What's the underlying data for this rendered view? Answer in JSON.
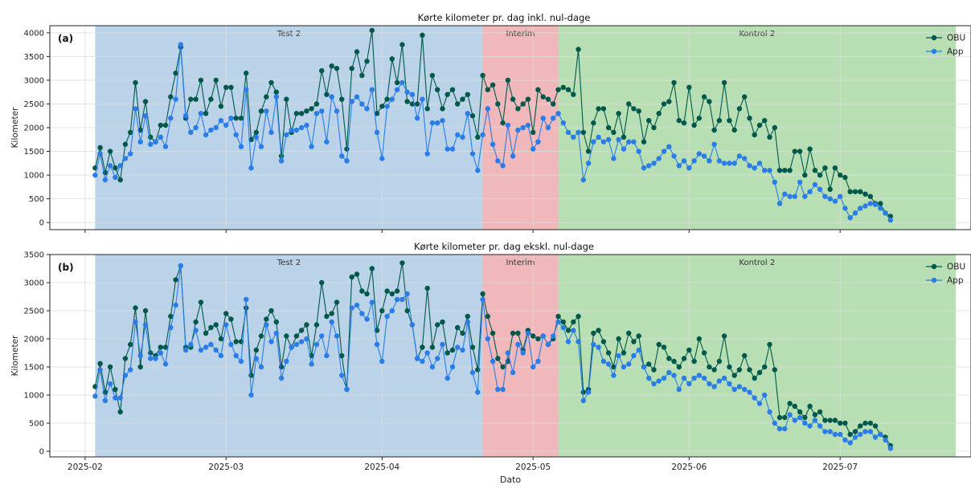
{
  "figure": {
    "xlabel": "Dato",
    "colors": {
      "obu": "#00584a",
      "app": "#2a7de8",
      "test": "#bad3e8",
      "interim": "#f0b8bb",
      "kontrol": "#b8dfb4",
      "grid": "#dddddd"
    }
  },
  "chart_data": [
    {
      "type": "line",
      "title": "Kørte kilometer pr. dag inkl. nul-dage",
      "panel_label": "(a)",
      "ylabel": "Kilometer",
      "xlim": [
        "2025-01-25",
        "2025-07-27"
      ],
      "ylim": [
        -150,
        4150
      ],
      "yticks": [
        0,
        500,
        1000,
        1500,
        2000,
        2500,
        3000,
        3500,
        4000
      ],
      "xticks": [
        {
          "date": "2025-02-01",
          "label": "2025-02"
        },
        {
          "date": "2025-03-01",
          "label": "2025-03"
        },
        {
          "date": "2025-04-01",
          "label": "2025-04"
        },
        {
          "date": "2025-05-01",
          "label": "2025-05"
        },
        {
          "date": "2025-06-01",
          "label": "2025-06"
        },
        {
          "date": "2025-07-01",
          "label": "2025-07"
        }
      ],
      "grid": true,
      "legend_position": "top-right",
      "x_start": "2025-02-03",
      "periods": [
        {
          "label": "Test 2",
          "start": "2025-02-03",
          "end": "2025-04-21",
          "color": "test"
        },
        {
          "label": "Interim",
          "start": "2025-04-21",
          "end": "2025-05-06",
          "color": "interim"
        },
        {
          "label": "Kontrol 2",
          "start": "2025-05-06",
          "end": "2025-07-24",
          "color": "kontrol"
        }
      ],
      "series": [
        {
          "name": "OBU",
          "color": "obu",
          "values": [
            1150,
            1580,
            1050,
            1500,
            1150,
            900,
            1650,
            1900,
            2950,
            1950,
            2550,
            1800,
            1700,
            2050,
            2050,
            2650,
            3150,
            3700,
            2200,
            2600,
            2600,
            3000,
            2300,
            2600,
            3000,
            2450,
            2850,
            2850,
            2200,
            2200,
            3150,
            1750,
            1900,
            2350,
            2650,
            2950,
            2750,
            1400,
            2600,
            1900,
            2300,
            2300,
            2350,
            2400,
            2500,
            3200,
            2700,
            3300,
            3250,
            2600,
            1550,
            3250,
            3600,
            3100,
            3400,
            4050,
            2300,
            2450,
            2600,
            3450,
            2950,
            3750,
            2550,
            2500,
            2500,
            3950,
            2400,
            3100,
            2800,
            2400,
            2700,
            2800,
            2500,
            2600,
            2700,
            2250,
            1800,
            3100,
            2800,
            2900,
            2500,
            2100,
            3000,
            2600,
            2400,
            2500,
            2600,
            1900,
            2800,
            2650,
            2600,
            2500,
            2800,
            2850,
            2800,
            2700,
            3650,
            1900,
            1500,
            2100,
            2400,
            2400,
            2000,
            1900,
            2300,
            1800,
            2500,
            2400,
            2350,
            1700,
            2150,
            2000,
            2300,
            2500,
            2550,
            2950,
            2150,
            2100,
            2850,
            2050,
            2200,
            2650,
            2550,
            1950,
            2150,
            2950,
            2150,
            1950,
            2400,
            2650,
            2200,
            1850,
            2050,
            2150,
            1800,
            2000,
            1100,
            1100,
            1100,
            1500,
            1500,
            1000,
            1550,
            1100,
            1000,
            1150,
            700,
            1150,
            1000,
            950,
            650,
            650,
            650,
            600,
            550,
            400,
            400,
            200,
            130
          ]
        },
        {
          "name": "App",
          "color": "app",
          "values": [
            1000,
            1450,
            900,
            1200,
            950,
            1200,
            1350,
            1450,
            2400,
            1700,
            2250,
            1650,
            1700,
            1800,
            1600,
            2200,
            2600,
            3750,
            2250,
            1900,
            2000,
            2300,
            1850,
            1950,
            2000,
            2150,
            2050,
            2200,
            1850,
            1600,
            2800,
            1150,
            1800,
            1600,
            2350,
            1900,
            2650,
            1300,
            1850,
            1950,
            1950,
            2000,
            2050,
            1600,
            2300,
            2350,
            1700,
            2650,
            2350,
            1400,
            1300,
            2550,
            2650,
            2500,
            2400,
            2800,
            1900,
            1350,
            2450,
            2600,
            2800,
            2950,
            2750,
            2700,
            2200,
            2600,
            1450,
            2100,
            2100,
            2150,
            1550,
            1550,
            1850,
            1800,
            2300,
            1450,
            1100,
            1850,
            2400,
            1650,
            1300,
            1200,
            2050,
            1400,
            1950,
            2000,
            2050,
            1550,
            1700,
            2200,
            2000,
            2200,
            2300,
            2100,
            1900,
            1800,
            1900,
            900,
            1250,
            1700,
            1800,
            1700,
            1750,
            1350,
            1750,
            1550,
            1700,
            1700,
            1500,
            1150,
            1200,
            1250,
            1350,
            1500,
            1600,
            1400,
            1200,
            1300,
            1150,
            1300,
            1450,
            1400,
            1300,
            1650,
            1300,
            1250,
            1250,
            1250,
            1400,
            1350,
            1200,
            1150,
            1250,
            1100,
            1100,
            850,
            400,
            600,
            550,
            550,
            850,
            550,
            650,
            800,
            700,
            550,
            500,
            450,
            550,
            300,
            100,
            200,
            300,
            350,
            400,
            380,
            300,
            200,
            50
          ]
        }
      ]
    },
    {
      "type": "line",
      "title": "Kørte kilometer pr. dag ekskl. nul-dage",
      "panel_label": "(b)",
      "ylabel": "Kilometer",
      "xlim": [
        "2025-01-25",
        "2025-07-27"
      ],
      "ylim": [
        -100,
        3500
      ],
      "yticks": [
        0,
        500,
        1000,
        1500,
        2000,
        2500,
        3000,
        3500
      ],
      "xticks": [
        {
          "date": "2025-02-01",
          "label": "2025-02"
        },
        {
          "date": "2025-03-01",
          "label": "2025-03"
        },
        {
          "date": "2025-04-01",
          "label": "2025-04"
        },
        {
          "date": "2025-05-01",
          "label": "2025-05"
        },
        {
          "date": "2025-06-01",
          "label": "2025-06"
        },
        {
          "date": "2025-07-01",
          "label": "2025-07"
        }
      ],
      "grid": true,
      "legend_position": "top-right",
      "x_start": "2025-02-03",
      "periods": [
        {
          "label": "Test 2",
          "start": "2025-02-03",
          "end": "2025-04-21",
          "color": "test"
        },
        {
          "label": "Interim",
          "start": "2025-04-21",
          "end": "2025-05-06",
          "color": "interim"
        },
        {
          "label": "Kontrol 2",
          "start": "2025-05-06",
          "end": "2025-07-24",
          "color": "kontrol"
        }
      ],
      "series": [
        {
          "name": "OBU",
          "color": "obu",
          "values": [
            1150,
            1560,
            1050,
            1500,
            1100,
            700,
            1650,
            1900,
            2550,
            1500,
            2500,
            1750,
            1700,
            1850,
            1850,
            2400,
            3050,
            3300,
            1850,
            1850,
            2300,
            2650,
            2100,
            2200,
            2250,
            2000,
            2450,
            2350,
            1950,
            1950,
            2550,
            1350,
            1800,
            2050,
            2350,
            2500,
            2300,
            1500,
            2050,
            1850,
            2050,
            2150,
            2250,
            1700,
            2250,
            3000,
            2400,
            2450,
            2650,
            1700,
            1100,
            3100,
            3150,
            2850,
            2800,
            3250,
            2150,
            2500,
            2850,
            2800,
            2850,
            3350,
            2500,
            2250,
            1650,
            1850,
            2900,
            1850,
            2250,
            2300,
            1750,
            1800,
            2200,
            2100,
            2400,
            1850,
            1450,
            2800,
            2400,
            2100,
            1650,
            1500,
            1600,
            2100,
            2100,
            1800,
            2150,
            2050,
            2000,
            2050,
            1900,
            2000,
            2400,
            2300,
            2150,
            2300,
            2400,
            1050,
            1100,
            2100,
            2150,
            1950,
            1750,
            1500,
            2000,
            1750,
            2100,
            1950,
            2050,
            1500,
            1550,
            1450,
            1900,
            1850,
            1650,
            1600,
            1500,
            1650,
            1800,
            1600,
            2000,
            1750,
            1500,
            1450,
            1600,
            2050,
            1500,
            1350,
            1450,
            1700,
            1450,
            1300,
            1400,
            1500,
            1900,
            1450,
            600,
            600,
            850,
            800,
            700,
            600,
            800,
            650,
            700,
            550,
            550,
            550,
            500,
            500,
            300,
            350,
            450,
            500,
            500,
            450,
            300,
            250,
            100
          ]
        },
        {
          "name": "App",
          "color": "app",
          "values": [
            980,
            1450,
            900,
            1200,
            950,
            950,
            1350,
            1450,
            2300,
            1700,
            2250,
            1650,
            1650,
            1750,
            1550,
            2200,
            2600,
            3300,
            1800,
            1900,
            2150,
            1800,
            1850,
            1900,
            1800,
            1700,
            2250,
            1900,
            1700,
            1600,
            2700,
            1000,
            1650,
            1500,
            2250,
            1950,
            2100,
            1300,
            1600,
            1850,
            1900,
            1950,
            2000,
            1550,
            1900,
            2050,
            1700,
            2300,
            2050,
            1350,
            1100,
            2550,
            2600,
            2450,
            2350,
            2650,
            1900,
            1600,
            2400,
            2500,
            2700,
            2700,
            2800,
            2250,
            1650,
            1600,
            1750,
            1500,
            1650,
            1900,
            1300,
            1500,
            1850,
            1800,
            2300,
            1400,
            1050,
            2700,
            2000,
            1600,
            1100,
            1100,
            1750,
            1400,
            1900,
            1750,
            2100,
            1500,
            1600,
            2050,
            1900,
            2050,
            2300,
            2200,
            1950,
            2150,
            1950,
            900,
            1050,
            1900,
            1850,
            1600,
            1550,
            1350,
            1700,
            1500,
            1550,
            1700,
            1800,
            1500,
            1300,
            1200,
            1250,
            1300,
            1400,
            1350,
            1100,
            1300,
            1200,
            1300,
            1350,
            1300,
            1200,
            1150,
            1250,
            1300,
            1200,
            1100,
            1150,
            1100,
            1050,
            950,
            850,
            1000,
            700,
            500,
            400,
            400,
            650,
            550,
            600,
            500,
            450,
            550,
            450,
            350,
            350,
            300,
            300,
            200,
            150,
            250,
            300,
            350,
            350,
            250,
            300,
            200,
            50
          ]
        }
      ]
    }
  ]
}
